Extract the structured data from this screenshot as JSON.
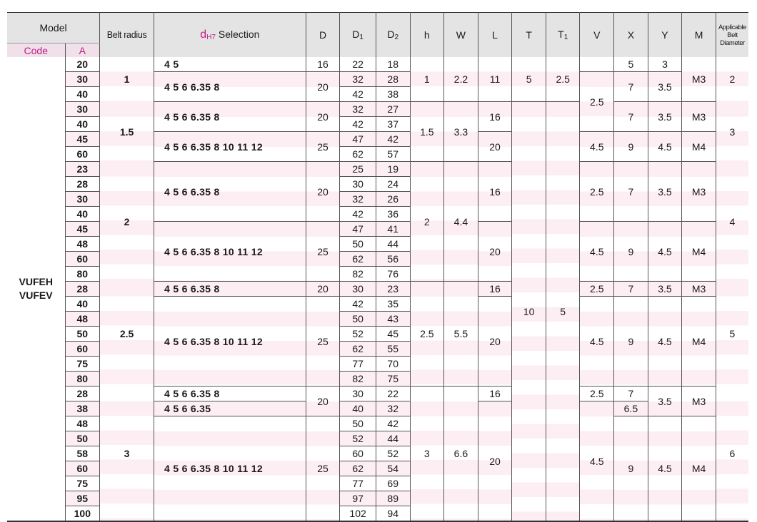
{
  "headers": {
    "model": "Model",
    "belt_radius": "Belt radius",
    "dh7_d": "d",
    "dh7_sub": "H7",
    "dh7_rest": " Selection",
    "D": "D",
    "D1": "D",
    "D1_sub": "1",
    "D2": "D",
    "D2_sub": "2",
    "h": "h",
    "W": "W",
    "L": "L",
    "T": "T",
    "T1": "T",
    "T1_sub": "1",
    "V": "V",
    "X": "X",
    "Y": "Y",
    "M": "M",
    "applicable": "Applicable Belt Diameter",
    "code": "Code",
    "A": "A"
  },
  "code_values": [
    "VUFEH",
    "VUFEV"
  ],
  "rows": [
    {
      "A": "20",
      "D1": "22",
      "D2": "18"
    },
    {
      "A": "30",
      "D1": "32",
      "D2": "28"
    },
    {
      "A": "40",
      "D1": "42",
      "D2": "38"
    },
    {
      "A": "30",
      "D1": "32",
      "D2": "27"
    },
    {
      "A": "40",
      "D1": "42",
      "D2": "37"
    },
    {
      "A": "45",
      "D1": "47",
      "D2": "42"
    },
    {
      "A": "60",
      "D1": "62",
      "D2": "57"
    },
    {
      "A": "23",
      "D1": "25",
      "D2": "19"
    },
    {
      "A": "28",
      "D1": "30",
      "D2": "24"
    },
    {
      "A": "30",
      "D1": "32",
      "D2": "26"
    },
    {
      "A": "40",
      "D1": "42",
      "D2": "36"
    },
    {
      "A": "45",
      "D1": "47",
      "D2": "41"
    },
    {
      "A": "48",
      "D1": "50",
      "D2": "44"
    },
    {
      "A": "60",
      "D1": "62",
      "D2": "56"
    },
    {
      "A": "80",
      "D1": "82",
      "D2": "76"
    },
    {
      "A": "28",
      "D1": "30",
      "D2": "23"
    },
    {
      "A": "40",
      "D1": "42",
      "D2": "35"
    },
    {
      "A": "48",
      "D1": "50",
      "D2": "43"
    },
    {
      "A": "50",
      "D1": "52",
      "D2": "45"
    },
    {
      "A": "60",
      "D1": "62",
      "D2": "55"
    },
    {
      "A": "75",
      "D1": "77",
      "D2": "70"
    },
    {
      "A": "80",
      "D1": "82",
      "D2": "75"
    },
    {
      "A": "28",
      "D1": "30",
      "D2": "22"
    },
    {
      "A": "38",
      "D1": "40",
      "D2": "32"
    },
    {
      "A": "48",
      "D1": "50",
      "D2": "42"
    },
    {
      "A": "50",
      "D1": "52",
      "D2": "44"
    },
    {
      "A": "58",
      "D1": "60",
      "D2": "52"
    },
    {
      "A": "60",
      "D1": "62",
      "D2": "54"
    },
    {
      "A": "75",
      "D1": "77",
      "D2": "69"
    },
    {
      "A": "95",
      "D1": "97",
      "D2": "89"
    },
    {
      "A": "100",
      "D1": "102",
      "D2": "94"
    }
  ],
  "belt_radius": [
    "1",
    "1.5",
    "2",
    "2.5",
    "3"
  ],
  "dh7": {
    "g1a": "4  5",
    "g1b": "4  5  6  6.35  8",
    "g2a": "4  5  6  6.35  8",
    "g2b": "4  5  6  6.35  8  10  11  12",
    "g3a": "4  5  6  6.35  8",
    "g3b": "4  5  6  6.35  8  10  11  12",
    "g4a": "4  5  6  6.35  8",
    "g4b": "4  5  6  6.35  8  10  11  12",
    "g5a": "4  5  6  6.35  8",
    "g5b": "4  5  6  6.35",
    "g5c": "4  5  6  6.35  8  10  11  12"
  },
  "D": {
    "g1a": "16",
    "g1b": "20",
    "g2a": "20",
    "g2b": "25",
    "g3a": "20",
    "g3b": "25",
    "g4a": "20",
    "g4b": "25",
    "g5a": "20",
    "g5c": "25"
  },
  "h": {
    "g1": "1",
    "g2": "1.5",
    "g3": "2",
    "g4": "2.5",
    "g5": "3"
  },
  "W": {
    "g1": "2.2",
    "g2": "3.3",
    "g3": "4.4",
    "g4": "5.5",
    "g5": "6.6"
  },
  "L": {
    "g1": "11",
    "g2a": "16",
    "g2b": "20",
    "g3a": "16",
    "g3b": "20",
    "g4a": "16",
    "g4b": "20",
    "g5a": "16",
    "g5b": "20"
  },
  "T": {
    "a": "5",
    "b": "10"
  },
  "T1": {
    "a": "2.5",
    "b": "5"
  },
  "V": {
    "g1": "2.5",
    "g2b": "4.5",
    "g3a": "2.5",
    "g3b": "4.5",
    "g4a": "2.5",
    "g4b": "4.5",
    "g5a": "2.5",
    "g5c": "4.5"
  },
  "X": {
    "r0": "5",
    "g1": "7",
    "g2a": "7",
    "g2b": "9",
    "g3a": "7",
    "g3b": "9",
    "g4a": "7",
    "g4b": "9",
    "g5a": "7",
    "g5b": "6.5",
    "g5c": "9"
  },
  "Y": {
    "r0": "3",
    "g1": "3.5",
    "g2a": "3.5",
    "g2b": "4.5",
    "g3a": "3.5",
    "g3b": "4.5",
    "g4a": "3.5",
    "g4b": "4.5",
    "g5a": "3.5",
    "g5c": "4.5"
  },
  "M": {
    "g1": "M3",
    "g2a": "M3",
    "g2b": "M4",
    "g3a": "M3",
    "g3b": "M4",
    "g4a": "M3",
    "g4b": "M4",
    "g5a": "M3",
    "g5c": "M4"
  },
  "applicable": {
    "g1": "2",
    "g2": "3",
    "g3": "4",
    "g4": "5",
    "g5": "6"
  }
}
